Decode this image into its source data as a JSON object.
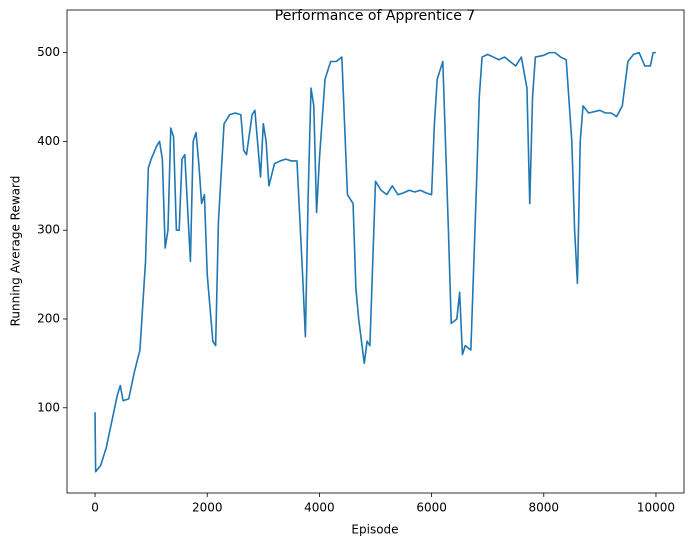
{
  "chart_data": {
    "type": "line",
    "title": "Performance of Apprentice 7",
    "xlabel": "Episode",
    "ylabel": "Running Average Reward",
    "color": "#1f77b4",
    "xlim": [
      -500,
      10500
    ],
    "ylim": [
      4,
      548
    ],
    "xticks": [
      0,
      2000,
      4000,
      6000,
      8000,
      10000
    ],
    "yticks": [
      100,
      200,
      300,
      400,
      500
    ],
    "grid": false,
    "x": [
      0,
      10,
      100,
      200,
      300,
      400,
      450,
      500,
      600,
      700,
      800,
      900,
      950,
      1000,
      1100,
      1150,
      1200,
      1250,
      1300,
      1350,
      1400,
      1450,
      1500,
      1550,
      1600,
      1700,
      1750,
      1800,
      1850,
      1900,
      1950,
      2000,
      2100,
      2150,
      2200,
      2300,
      2400,
      2500,
      2600,
      2650,
      2700,
      2800,
      2850,
      2950,
      3000,
      3050,
      3100,
      3200,
      3300,
      3400,
      3500,
      3600,
      3700,
      3750,
      3800,
      3850,
      3900,
      3950,
      4000,
      4100,
      4200,
      4300,
      4400,
      4500,
      4600,
      4650,
      4700,
      4800,
      4850,
      4900,
      5000,
      5100,
      5200,
      5300,
      5400,
      5500,
      5600,
      5700,
      5800,
      5900,
      6000,
      6050,
      6100,
      6200,
      6300,
      6350,
      6450,
      6500,
      6550,
      6600,
      6700,
      6800,
      6850,
      6900,
      7000,
      7100,
      7200,
      7300,
      7400,
      7500,
      7600,
      7700,
      7750,
      7800,
      7850,
      8000,
      8100,
      8200,
      8300,
      8400,
      8500,
      8550,
      8600,
      8650,
      8700,
      8800,
      9000,
      9100,
      9200,
      9300,
      9400,
      9500,
      9600,
      9700,
      9800,
      9900,
      9950,
      10000
    ],
    "values": [
      95,
      28,
      35,
      55,
      85,
      115,
      125,
      108,
      110,
      140,
      165,
      265,
      370,
      380,
      395,
      400,
      380,
      280,
      300,
      415,
      405,
      300,
      300,
      380,
      385,
      265,
      400,
      410,
      375,
      330,
      340,
      250,
      175,
      170,
      310,
      420,
      430,
      432,
      430,
      390,
      385,
      430,
      435,
      360,
      420,
      400,
      350,
      375,
      378,
      380,
      378,
      378,
      250,
      180,
      340,
      460,
      440,
      320,
      380,
      470,
      490,
      490,
      495,
      340,
      330,
      235,
      200,
      150,
      175,
      170,
      355,
      345,
      340,
      350,
      340,
      342,
      345,
      343,
      345,
      342,
      340,
      420,
      470,
      490,
      300,
      195,
      200,
      230,
      160,
      170,
      165,
      350,
      450,
      495,
      498,
      495,
      492,
      495,
      490,
      485,
      495,
      460,
      330,
      450,
      495,
      497,
      500,
      500,
      495,
      492,
      400,
      300,
      240,
      400,
      440,
      432,
      435,
      432,
      432,
      428,
      440,
      490,
      498,
      500,
      485,
      485,
      500,
      500
    ]
  }
}
